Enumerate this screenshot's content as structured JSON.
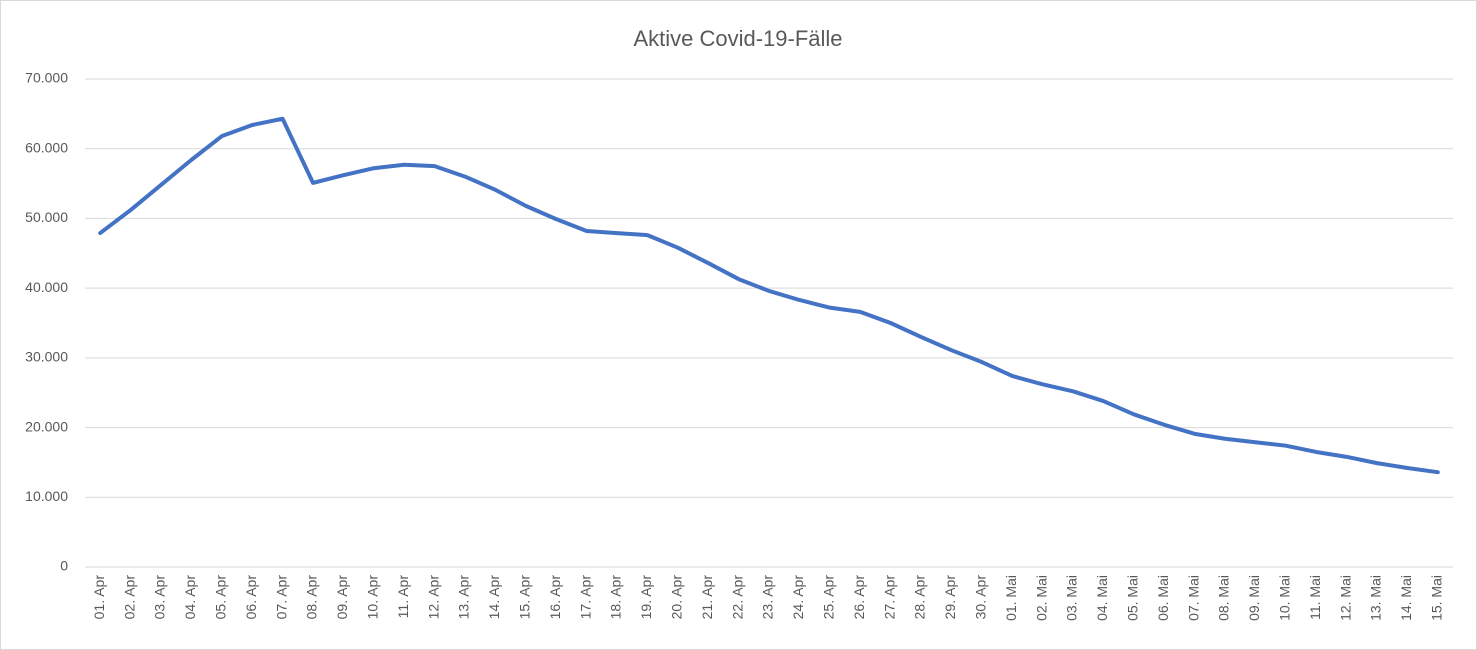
{
  "chart_data": {
    "type": "line",
    "title": "Aktive Covid-19-Fälle",
    "categories": [
      "01. Apr",
      "02. Apr",
      "03. Apr",
      "04. Apr",
      "05. Apr",
      "06. Apr",
      "07. Apr",
      "08. Apr",
      "09. Apr",
      "10. Apr",
      "11. Apr",
      "12. Apr",
      "13. Apr",
      "14. Apr",
      "15. Apr",
      "16. Apr",
      "17. Apr",
      "18. Apr",
      "19. Apr",
      "20. Apr",
      "21. Apr",
      "22. Apr",
      "23. Apr",
      "24. Apr",
      "25. Apr",
      "26. Apr",
      "27. Apr",
      "28. Apr",
      "29. Apr",
      "30. Apr",
      "01. Mai",
      "02. Mai",
      "03. Mai",
      "04. Mai",
      "05. Mai",
      "06. Mai",
      "07. Mai",
      "08. Mai",
      "09. Mai",
      "10. Mai",
      "11. Mai",
      "12. Mai",
      "13. Mai",
      "14. Mai",
      "15. Mai"
    ],
    "values": [
      47900,
      51200,
      54800,
      58400,
      61800,
      63400,
      64300,
      55100,
      56200,
      57200,
      57700,
      57500,
      56000,
      54100,
      51800,
      49900,
      48200,
      47900,
      47600,
      45800,
      43600,
      41300,
      39600,
      38300,
      37200,
      36600,
      35000,
      33000,
      31100,
      29400,
      27400,
      26200,
      25200,
      23800,
      21900,
      20400,
      19100,
      18400,
      17900,
      17400,
      16500,
      15800,
      14900,
      14200,
      13600
    ],
    "color": "#4472c4",
    "ylim": [
      0,
      70000
    ],
    "yticks": [
      0,
      {
        "value": 10000,
        "label": "10.000"
      },
      {
        "value": 20000,
        "label": "20.000"
      },
      {
        "value": 30000,
        "label": "30.000"
      },
      {
        "value": 40000,
        "label": "40.000"
      },
      {
        "value": 50000,
        "label": "50.000"
      },
      {
        "value": 60000,
        "label": "60.000"
      },
      {
        "value": 70000,
        "label": "70.000"
      }
    ],
    "grid": true
  }
}
